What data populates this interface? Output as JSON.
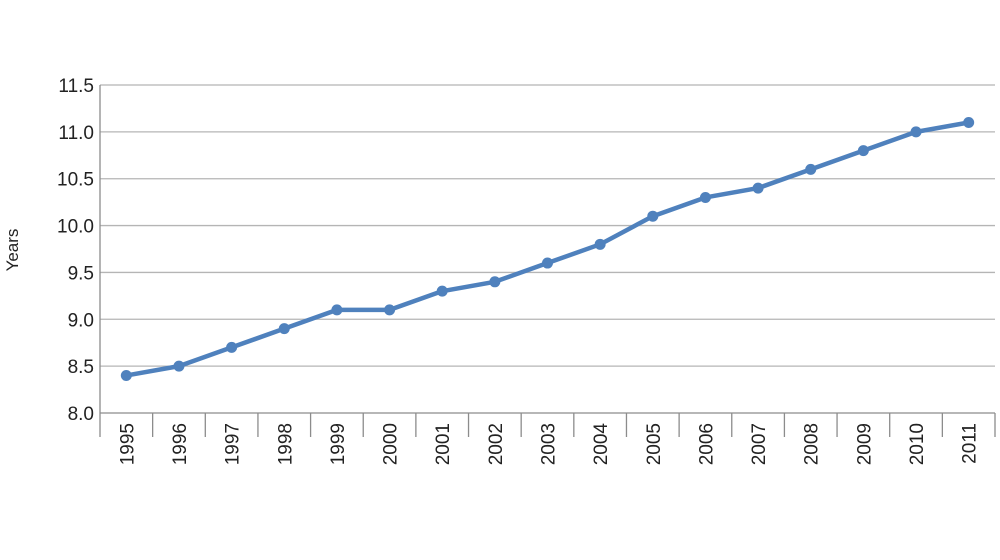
{
  "chart_data": {
    "type": "line",
    "title": "",
    "xlabel": "",
    "ylabel": "Years",
    "ylim": [
      8.0,
      11.5
    ],
    "yticks": [
      "8.0",
      "8.5",
      "9.0",
      "9.5",
      "10.0",
      "10.5",
      "11.0",
      "11.5"
    ],
    "categories": [
      "1995",
      "1996",
      "1997",
      "1998",
      "1999",
      "2000",
      "2001",
      "2002",
      "2003",
      "2004",
      "2005",
      "2006",
      "2007",
      "2008",
      "2009",
      "2010",
      "2011"
    ],
    "series": [
      {
        "values": [
          8.4,
          8.5,
          8.7,
          8.9,
          9.1,
          9.1,
          9.3,
          9.4,
          9.6,
          9.8,
          10.1,
          10.3,
          10.4,
          10.6,
          10.8,
          11.0,
          11.1
        ],
        "color": "#4f81bd"
      }
    ],
    "grid": true,
    "legend": "none"
  }
}
